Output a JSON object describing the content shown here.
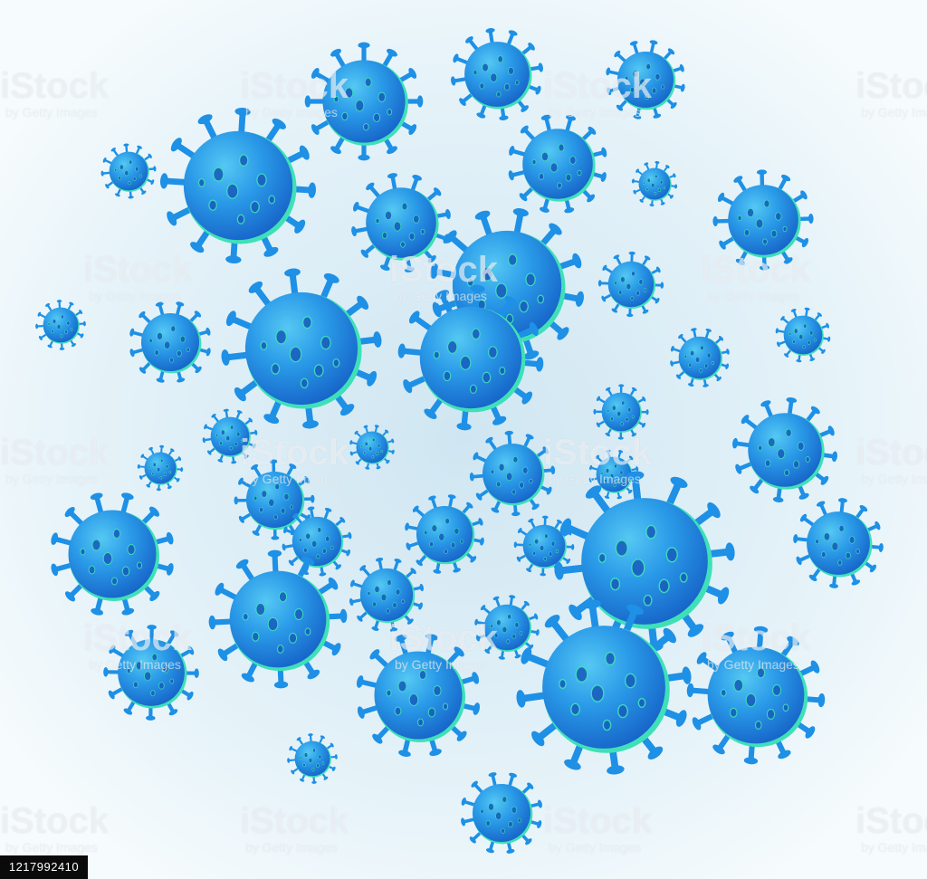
{
  "watermark": {
    "brand": "iStock",
    "sub": "by Getty Images"
  },
  "image_id": "1217992410",
  "palette": {
    "background_center": "#d6ebf5",
    "background_edge": "#f4fafc",
    "virus_light": "#4fc3f0",
    "virus_mid": "#1e90e6",
    "virus_dark": "#1565c8",
    "virus_rim": "#3fe0b8",
    "crater": "#1a5fbf"
  }
}
